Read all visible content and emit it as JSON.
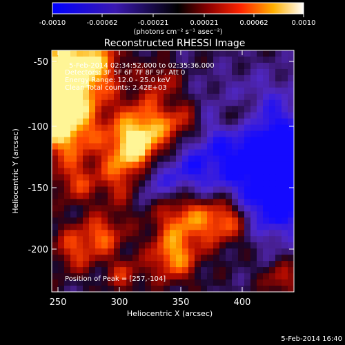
{
  "colorbar": {
    "ticks": [
      "-0.0010",
      "-0.00062",
      "-0.00021",
      "0.00021",
      "0.00062",
      "0.0010"
    ],
    "unit_label": "(photons cm⁻² s⁻¹ asec⁻²)"
  },
  "title": "Reconstructed RHESSI Image",
  "annotations": {
    "time_range": "5-Feb-2014 02:34:52.000 to 02:35:36.000",
    "detectors": "Detectors: 3F 5F 6F 7F 8F 9F, Att 0",
    "energy": "Energy Range: 12.0 - 25.0 keV",
    "clean": "Clean    Total counts: 2.42E+03",
    "peak": "Position of Peak = [257,-104]"
  },
  "axes": {
    "xlabel": "Heliocentric X (arcsec)",
    "ylabel": "Heliocentric Y (arcsec)",
    "xticks": [
      "250",
      "300",
      "350",
      "400"
    ],
    "yticks": [
      "-50",
      "-100",
      "-150",
      "-200"
    ]
  },
  "footer": {
    "timestamp": "5-Feb-2014 16:40"
  }
}
